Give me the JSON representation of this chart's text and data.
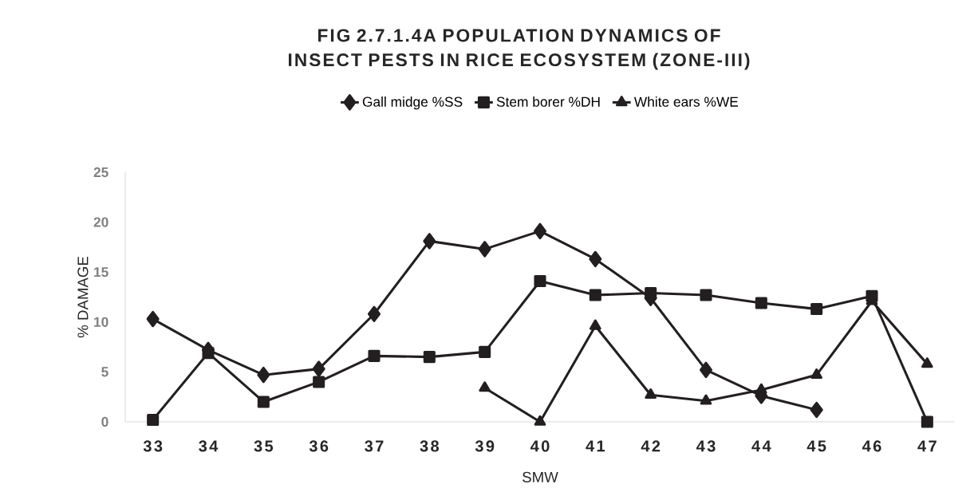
{
  "chart_data": {
    "type": "line",
    "title": "FIG 2.7.1.4A POPULATION DYNAMICS OF INSECT PESTS IN RICE ECOSYSTEM (ZONE-III)",
    "xlabel": "SMW",
    "ylabel": "% DAMAGE",
    "categories": [
      "33",
      "34",
      "35",
      "36",
      "37",
      "38",
      "39",
      "40",
      "41",
      "42",
      "43",
      "44",
      "45",
      "46",
      "47"
    ],
    "series": [
      {
        "name": "Gall midge %SS",
        "color": "#231f20",
        "marker": "diamond",
        "values": [
          10.3,
          7.2,
          4.7,
          5.3,
          10.8,
          18.1,
          17.3,
          19.1,
          16.3,
          12.4,
          5.2,
          2.6,
          1.2,
          null,
          null
        ]
      },
      {
        "name": "Stem borer %DH",
        "color": "#231f20",
        "marker": "square",
        "values": [
          0.2,
          6.9,
          2.0,
          4.0,
          6.6,
          6.5,
          7.0,
          14.1,
          12.7,
          12.9,
          12.7,
          11.9,
          11.3,
          12.6,
          0
        ]
      },
      {
        "name": "White ears %WE",
        "color": "#231f20",
        "marker": "triangle",
        "values": [
          null,
          null,
          null,
          null,
          null,
          null,
          3.4,
          0,
          9.6,
          2.7,
          2.1,
          3.2,
          4.7,
          12.1,
          5.8
        ]
      }
    ],
    "ylim": [
      0,
      25
    ],
    "yticks": [
      0,
      5,
      10,
      15,
      20,
      25
    ],
    "grid": false,
    "legend": "top",
    "line_style": "solid"
  }
}
